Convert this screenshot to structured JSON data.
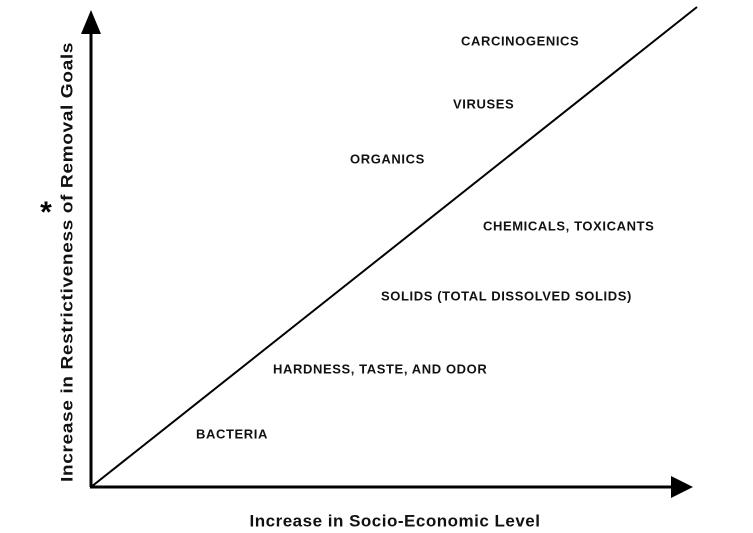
{
  "diagram": {
    "x_axis_label": "Increase in Socio-Economic Level",
    "y_axis_label": "Increase in Restrictiveness of Removal Goals",
    "y_axis_marker": "*",
    "items": [
      {
        "label": "CARCINOGENICS"
      },
      {
        "label": "VIRUSES"
      },
      {
        "label": "ORGANICS"
      },
      {
        "label": "CHEMICALS, TOXICANTS"
      },
      {
        "label": "SOLIDS (TOTAL DISSOLVED SOLIDS)"
      },
      {
        "label": "HARDNESS, TASTE, AND ODOR"
      },
      {
        "label": "BACTERIA"
      }
    ]
  }
}
